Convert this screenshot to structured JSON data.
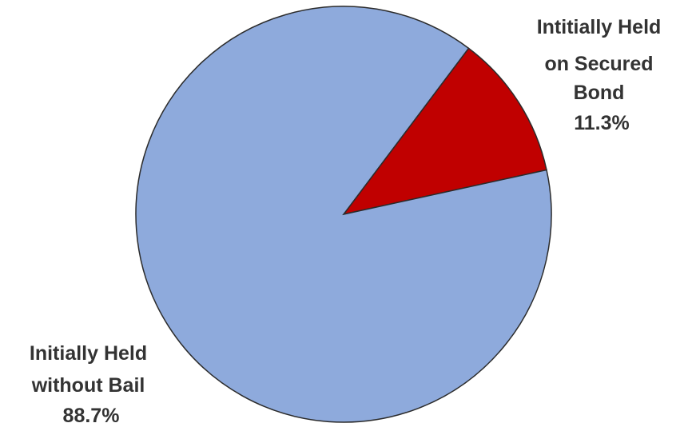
{
  "chart_data": {
    "type": "pie",
    "slices": [
      {
        "label_lines": [
          "Intitially Held",
          "on Secured",
          "Bond"
        ],
        "value": 11.3,
        "value_label": "11.3%",
        "color": "#c00000"
      },
      {
        "label_lines": [
          "Initially Held",
          "without Bail"
        ],
        "value": 88.7,
        "value_label": "88.7%",
        "color": "#8eaadc"
      }
    ],
    "outline_color": "#2b2b2b",
    "label_color": "#333333"
  }
}
